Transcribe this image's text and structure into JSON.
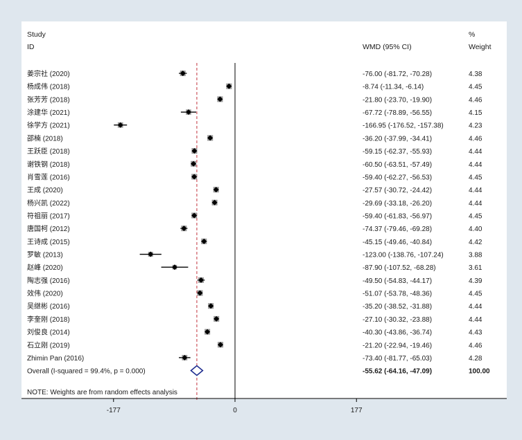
{
  "chart_data": {
    "type": "forest",
    "header": {
      "col1_line1": "Study",
      "col1_line2": "ID",
      "effect_label": "WMD (95% CI)",
      "weight_line1": "%",
      "weight_line2": "Weight"
    },
    "studies": [
      {
        "id": "姜宗社 (2020)",
        "est": -76.0,
        "lo": -81.72,
        "hi": -70.28,
        "ci_text": "-76.00 (-81.72, -70.28)",
        "weight": "4.38"
      },
      {
        "id": "杨成伟 (2018)",
        "est": -8.74,
        "lo": -11.34,
        "hi": -6.14,
        "ci_text": "-8.74 (-11.34, -6.14)",
        "weight": "4.45"
      },
      {
        "id": "张芳芳 (2018)",
        "est": -21.8,
        "lo": -23.7,
        "hi": -19.9,
        "ci_text": "-21.80 (-23.70, -19.90)",
        "weight": "4.46"
      },
      {
        "id": "涂建华 (2021)",
        "est": -67.72,
        "lo": -78.89,
        "hi": -56.55,
        "ci_text": "-67.72 (-78.89, -56.55)",
        "weight": "4.15"
      },
      {
        "id": "徐学方 (2021)",
        "est": -166.95,
        "lo": -176.52,
        "hi": -157.38,
        "ci_text": "-166.95 (-176.52, -157.38)",
        "weight": "4.23"
      },
      {
        "id": "邵楠 (2018)",
        "est": -36.2,
        "lo": -37.99,
        "hi": -34.41,
        "ci_text": "-36.20 (-37.99, -34.41)",
        "weight": "4.46"
      },
      {
        "id": "王跃臣 (2018)",
        "est": -59.15,
        "lo": -62.37,
        "hi": -55.93,
        "ci_text": "-59.15 (-62.37, -55.93)",
        "weight": "4.44"
      },
      {
        "id": "谢铁钢 (2018)",
        "est": -60.5,
        "lo": -63.51,
        "hi": -57.49,
        "ci_text": "-60.50 (-63.51, -57.49)",
        "weight": "4.44"
      },
      {
        "id": "肖雪莲 (2016)",
        "est": -59.4,
        "lo": -62.27,
        "hi": -56.53,
        "ci_text": "-59.40 (-62.27, -56.53)",
        "weight": "4.45"
      },
      {
        "id": "王成 (2020)",
        "est": -27.57,
        "lo": -30.72,
        "hi": -24.42,
        "ci_text": "-27.57 (-30.72, -24.42)",
        "weight": "4.44"
      },
      {
        "id": "杨兴凯 (2022)",
        "est": -29.69,
        "lo": -33.18,
        "hi": -26.2,
        "ci_text": "-29.69 (-33.18, -26.20)",
        "weight": "4.44"
      },
      {
        "id": "符祖丽 (2017)",
        "est": -59.4,
        "lo": -61.83,
        "hi": -56.97,
        "ci_text": "-59.40 (-61.83, -56.97)",
        "weight": "4.45"
      },
      {
        "id": "唐国柯 (2012)",
        "est": -74.37,
        "lo": -79.46,
        "hi": -69.28,
        "ci_text": "-74.37 (-79.46, -69.28)",
        "weight": "4.40"
      },
      {
        "id": "王诗成 (2015)",
        "est": -45.15,
        "lo": -49.46,
        "hi": -40.84,
        "ci_text": "-45.15 (-49.46, -40.84)",
        "weight": "4.42"
      },
      {
        "id": "罗敏 (2013)",
        "est": -123.0,
        "lo": -138.76,
        "hi": -107.24,
        "ci_text": "-123.00 (-138.76, -107.24)",
        "weight": "3.88"
      },
      {
        "id": "赵峰 (2020)",
        "est": -87.9,
        "lo": -107.52,
        "hi": -68.28,
        "ci_text": "-87.90 (-107.52, -68.28)",
        "weight": "3.61"
      },
      {
        "id": "陶志强 (2016)",
        "est": -49.5,
        "lo": -54.83,
        "hi": -44.17,
        "ci_text": "-49.50 (-54.83, -44.17)",
        "weight": "4.39"
      },
      {
        "id": "效伟 (2020)",
        "est": -51.07,
        "lo": -53.78,
        "hi": -48.36,
        "ci_text": "-51.07 (-53.78, -48.36)",
        "weight": "4.45"
      },
      {
        "id": "吴继彬 (2016)",
        "est": -35.2,
        "lo": -38.52,
        "hi": -31.88,
        "ci_text": "-35.20 (-38.52, -31.88)",
        "weight": "4.44"
      },
      {
        "id": "李奎刚 (2018)",
        "est": -27.1,
        "lo": -30.32,
        "hi": -23.88,
        "ci_text": "-27.10 (-30.32, -23.88)",
        "weight": "4.44"
      },
      {
        "id": "刘俊良 (2014)",
        "est": -40.3,
        "lo": -43.86,
        "hi": -36.74,
        "ci_text": "-40.30 (-43.86, -36.74)",
        "weight": "4.43"
      },
      {
        "id": "石立刚 (2019)",
        "est": -21.2,
        "lo": -22.94,
        "hi": -19.46,
        "ci_text": "-21.20 (-22.94, -19.46)",
        "weight": "4.46"
      },
      {
        "id": "Zhimin Pan  (2016)",
        "est": -73.4,
        "lo": -81.77,
        "hi": -65.03,
        "ci_text": "-73.40 (-81.77, -65.03)",
        "weight": "4.28"
      }
    ],
    "overall": {
      "id": "Overall  (I-squared = 99.4%, p = 0.000)",
      "est": -55.62,
      "lo": -64.16,
      "hi": -47.09,
      "ci_text": "-55.62 (-64.16, -47.09)",
      "weight": "100.00"
    },
    "note": "NOTE: Weights are from random effects analysis",
    "x_ticks": [
      {
        "value": -177,
        "label": "-177"
      },
      {
        "value": 0,
        "label": "0"
      },
      {
        "value": 177,
        "label": "177"
      }
    ],
    "colors": {
      "background": "#dfe7ee",
      "panel": "#ffffff",
      "marker": "#000000",
      "overall_diamond": "#1f2d8f",
      "overall_line": "#c0323c"
    }
  }
}
